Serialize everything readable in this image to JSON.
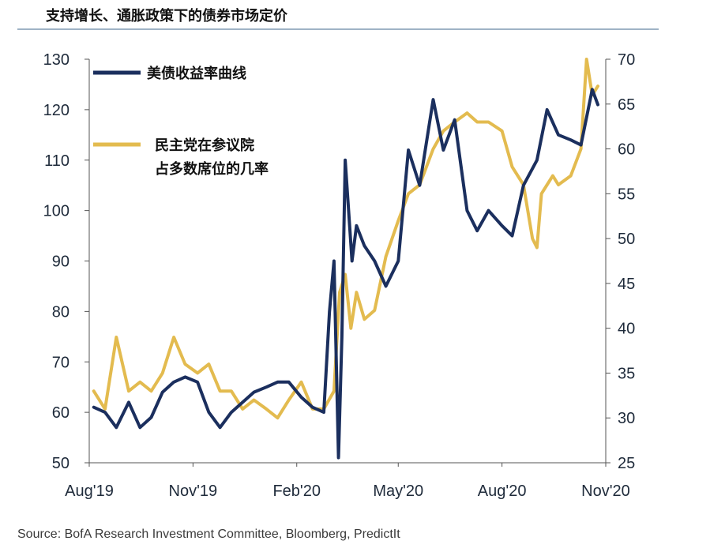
{
  "title": "支持增长、通胀政策下的债券市场定价",
  "source": "Source: BofA Research Investment Committee, Bloomberg, PredictIt",
  "chart_data": {
    "type": "line",
    "x_ticks": [
      "Aug'19",
      "Nov'19",
      "Feb'20",
      "May'20",
      "Aug'20",
      "Nov'20"
    ],
    "y_left_ticks": [
      "50",
      "60",
      "70",
      "80",
      "90",
      "100",
      "110",
      "120",
      "130"
    ],
    "y_right_ticks": [
      "25",
      "30",
      "35",
      "40",
      "45",
      "50",
      "55",
      "60",
      "65",
      "70"
    ],
    "ylim_left": [
      50,
      130
    ],
    "ylim_right": [
      25,
      70
    ],
    "legend": [
      "美债收益率曲线",
      "民主党在参议院\n占多数席位的几率"
    ],
    "colors": {
      "curve": "#1b2f5e",
      "odds": "#e3bb4f",
      "axis": "#555555"
    },
    "series": [
      {
        "name": "美债收益率曲线",
        "axis": "left",
        "color": "#1b2f5e",
        "x": [
          "2019-08-05",
          "2019-08-15",
          "2019-08-25",
          "2019-09-05",
          "2019-09-15",
          "2019-09-25",
          "2019-10-05",
          "2019-10-15",
          "2019-10-25",
          "2019-11-05",
          "2019-11-15",
          "2019-11-25",
          "2019-12-05",
          "2019-12-15",
          "2019-12-25",
          "2020-01-05",
          "2020-01-15",
          "2020-01-25",
          "2020-02-05",
          "2020-02-15",
          "2020-02-25",
          "2020-03-01",
          "2020-03-05",
          "2020-03-09",
          "2020-03-12",
          "2020-03-15",
          "2020-03-18",
          "2020-03-21",
          "2020-03-25",
          "2020-04-01",
          "2020-04-10",
          "2020-04-20",
          "2020-05-01",
          "2020-05-10",
          "2020-05-20",
          "2020-06-01",
          "2020-06-10",
          "2020-06-20",
          "2020-07-01",
          "2020-07-10",
          "2020-07-20",
          "2020-08-01",
          "2020-08-10",
          "2020-08-20",
          "2020-09-01",
          "2020-09-10",
          "2020-09-20",
          "2020-10-01",
          "2020-10-10",
          "2020-10-20",
          "2020-10-25"
        ],
        "values": [
          61,
          60,
          57,
          62,
          57,
          59,
          64,
          66,
          67,
          66,
          60,
          57,
          60,
          62,
          64,
          65,
          66,
          66,
          63,
          61,
          60,
          80,
          90,
          51,
          75,
          110,
          100,
          90,
          97,
          93,
          90,
          85,
          90,
          112,
          105,
          122,
          112,
          118,
          100,
          96,
          100,
          97,
          95,
          105,
          110,
          120,
          115,
          114,
          113,
          124,
          121
        ]
      },
      {
        "name": "民主党在参议院占多数席位的几率",
        "axis": "right",
        "color": "#e3bb4f",
        "x": [
          "2019-08-05",
          "2019-08-15",
          "2019-08-25",
          "2019-09-05",
          "2019-09-15",
          "2019-09-25",
          "2019-10-05",
          "2019-10-15",
          "2019-10-25",
          "2019-11-05",
          "2019-11-15",
          "2019-11-25",
          "2019-12-05",
          "2019-12-15",
          "2019-12-25",
          "2020-01-05",
          "2020-01-15",
          "2020-01-25",
          "2020-02-05",
          "2020-02-15",
          "2020-02-25",
          "2020-03-05",
          "2020-03-10",
          "2020-03-15",
          "2020-03-20",
          "2020-03-25",
          "2020-04-01",
          "2020-04-10",
          "2020-04-20",
          "2020-05-01",
          "2020-05-10",
          "2020-05-20",
          "2020-06-01",
          "2020-06-10",
          "2020-06-20",
          "2020-07-01",
          "2020-07-10",
          "2020-07-20",
          "2020-08-01",
          "2020-08-10",
          "2020-08-20",
          "2020-08-28",
          "2020-09-01",
          "2020-09-05",
          "2020-09-10",
          "2020-09-15",
          "2020-09-20",
          "2020-10-01",
          "2020-10-10",
          "2020-10-15",
          "2020-10-20",
          "2020-10-25"
        ],
        "values": [
          33,
          31,
          39,
          33,
          34,
          33,
          35,
          39,
          36,
          35,
          36,
          33,
          33,
          31,
          32,
          31,
          30,
          32,
          34,
          31,
          31,
          33,
          44,
          46,
          40,
          44,
          41,
          42,
          48,
          52,
          55,
          56,
          60,
          62,
          63,
          64,
          63,
          63,
          62,
          58,
          56,
          50,
          49,
          55,
          56,
          57,
          56,
          57,
          60,
          70,
          66,
          67
        ]
      }
    ]
  }
}
